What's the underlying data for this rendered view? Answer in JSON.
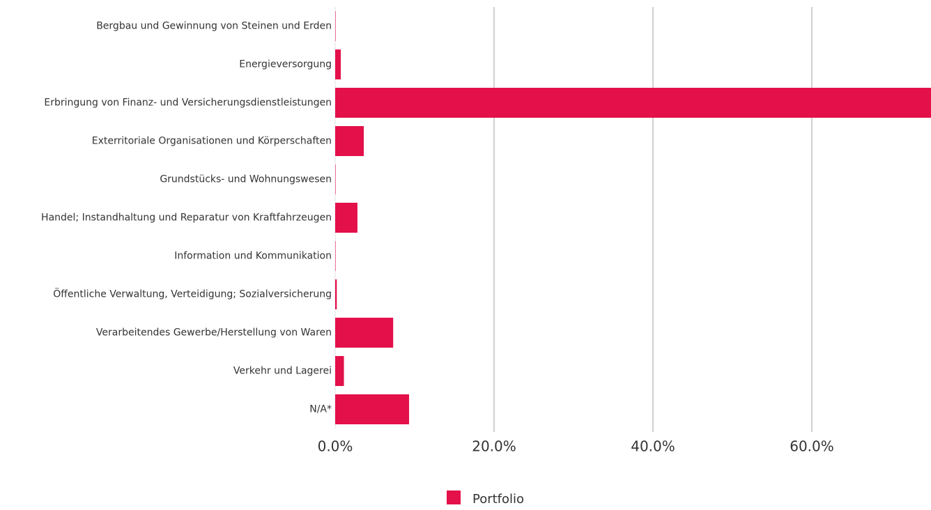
{
  "chart_data": {
    "type": "barh",
    "categories": [
      "Bergbau und Gewinnung von Steinen und Erden",
      "Energieversorgung",
      "Erbringung von Finanz- und Versicherungsdienstleistungen",
      "Exterritoriale Organisationen und Körperschaften",
      "Grundstücks- und Wohnungswesen",
      "Handel; Instandhaltung und Reparatur von Kraftfahrzeugen",
      "Information und Kommunikation",
      "Öffentliche Verwaltung, Verteidigung; Sozialversicherung",
      "Verarbeitendes Gewerbe/Herstellung von Waren",
      "Verkehr und Lagerei",
      "N/A*"
    ],
    "series": [
      {
        "name": "Portfolio",
        "color": "#e3104a",
        "values": [
          0.05,
          0.7,
          75,
          3.6,
          0.05,
          2.8,
          0.05,
          0.2,
          7.3,
          1.1,
          9.3
        ]
      }
    ],
    "xlim": [
      0,
      75
    ],
    "xticks": [
      {
        "value": 0,
        "label": "0.0%"
      },
      {
        "value": 20,
        "label": "20.0%"
      },
      {
        "value": 40,
        "label": "40.0%"
      },
      {
        "value": 60,
        "label": "60.0%"
      }
    ],
    "grid": true,
    "legend": "bottom"
  }
}
